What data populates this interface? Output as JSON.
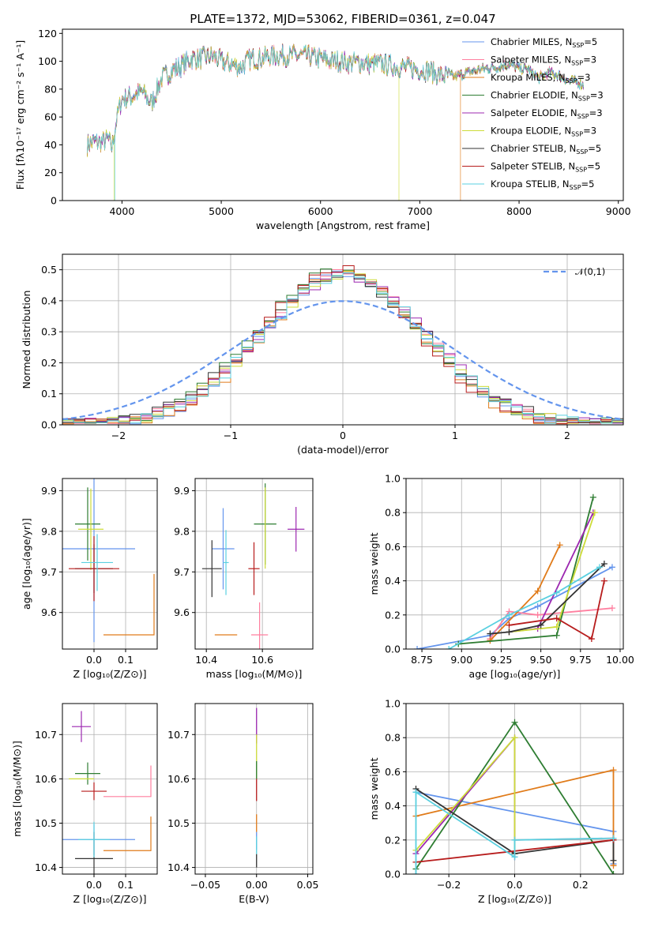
{
  "figure_title": "PLATE=1372, MJD=53062, FIBERID=0361, z=0.047",
  "colors": [
    "#6495ed",
    "#ff7f9f",
    "#e07b1a",
    "#2e7d32",
    "#9c27b0",
    "#cddc39",
    "#333333",
    "#b71c1c",
    "#5ad0e0"
  ],
  "chart_data": [
    {
      "id": "spectrum",
      "type": "line",
      "xlabel": "wavelength [Angstrom, rest frame]",
      "ylabel": "Flux [fλ10⁻¹⁷ erg cm⁻² s⁻¹ A⁻¹]",
      "xlim": [
        3400,
        9050
      ],
      "ylim": [
        0,
        123
      ],
      "xticks": [
        4000,
        5000,
        6000,
        7000,
        8000,
        9000
      ],
      "yticks": [
        0,
        20,
        40,
        60,
        80,
        100,
        120
      ],
      "legend_position": "top-right",
      "legend": [
        {
          "label": "Chabrier MILES, N",
          "sub": "SSP",
          "suffix": "=5"
        },
        {
          "label": "Salpeter MILES, N",
          "sub": "SSP",
          "suffix": "=3"
        },
        {
          "label": "Kroupa MILES, N",
          "sub": "SSP",
          "suffix": "=3"
        },
        {
          "label": "Chabrier ELODIE, N",
          "sub": "SSP",
          "suffix": "=3"
        },
        {
          "label": "Salpeter ELODIE, N",
          "sub": "SSP",
          "suffix": "=3"
        },
        {
          "label": "Kroupa ELODIE, N",
          "sub": "SSP",
          "suffix": "=3"
        },
        {
          "label": "Chabrier STELIB, N",
          "sub": "SSP",
          "suffix": "=5"
        },
        {
          "label": "Salpeter STELIB, N",
          "sub": "SSP",
          "suffix": "=5"
        },
        {
          "label": "Kroupa STELIB, N",
          "sub": "SSP",
          "suffix": "=5"
        }
      ],
      "envelope": [
        [
          3650,
          40
        ],
        [
          3700,
          42
        ],
        [
          3800,
          42
        ],
        [
          3860,
          44
        ],
        [
          3900,
          38
        ],
        [
          3950,
          60
        ],
        [
          4000,
          73
        ],
        [
          4100,
          75
        ],
        [
          4200,
          78
        ],
        [
          4300,
          70
        ],
        [
          4400,
          88
        ],
        [
          4500,
          93
        ],
        [
          4600,
          97
        ],
        [
          4700,
          102
        ],
        [
          4800,
          102
        ],
        [
          4900,
          104
        ],
        [
          5000,
          100
        ],
        [
          5100,
          98
        ],
        [
          5200,
          96
        ],
        [
          5300,
          102
        ],
        [
          5400,
          102
        ],
        [
          5500,
          104
        ],
        [
          5600,
          104
        ],
        [
          5700,
          104
        ],
        [
          5800,
          104
        ],
        [
          5900,
          103
        ],
        [
          6000,
          102
        ],
        [
          6100,
          100
        ],
        [
          6200,
          100
        ],
        [
          6300,
          99
        ],
        [
          6400,
          99
        ],
        [
          6500,
          98
        ],
        [
          6600,
          98
        ],
        [
          6700,
          97
        ],
        [
          6800,
          96
        ],
        [
          6900,
          95
        ],
        [
          7000,
          94
        ],
        [
          7100,
          93
        ],
        [
          7200,
          90
        ],
        [
          7300,
          89
        ],
        [
          7400,
          90
        ],
        [
          7500,
          92
        ],
        [
          7600,
          94
        ],
        [
          7700,
          95
        ],
        [
          7800,
          96
        ],
        [
          7900,
          98
        ],
        [
          8000,
          95
        ],
        [
          8100,
          94
        ],
        [
          8200,
          88
        ],
        [
          8300,
          92
        ],
        [
          8400,
          90
        ],
        [
          8500,
          86
        ],
        [
          8600,
          85
        ],
        [
          8650,
          82
        ]
      ],
      "dropouts": [
        {
          "series": 5,
          "x": 3920
        },
        {
          "series": 8,
          "x": 3930
        },
        {
          "series": 5,
          "x": 6790
        },
        {
          "series": 2,
          "x": 7410
        }
      ]
    },
    {
      "id": "residuals",
      "type": "step",
      "xlabel": "(data-model)/error",
      "ylabel": "Normed distribution",
      "xlim": [
        -2.5,
        2.5
      ],
      "ylim": [
        0,
        0.55
      ],
      "xticks": [
        -2,
        -1,
        0,
        1,
        2
      ],
      "yticks": [
        0.0,
        0.1,
        0.2,
        0.3,
        0.4,
        0.5
      ],
      "legend_label": "𝒩(0,1)",
      "bin_width": 0.1
    },
    {
      "id": "age_vs_Z",
      "type": "errorbar",
      "xlabel": "Z [log₁₀(Z/Z⊙)]",
      "ylabel": "age  [log₁₀(age/yr)]",
      "xlim": [
        -0.1,
        0.2
      ],
      "ylim": [
        9.51,
        9.93
      ],
      "xticks": [
        0.0,
        0.1
      ],
      "yticks": [
        9.6,
        9.7,
        9.8,
        9.9
      ],
      "points": [
        {
          "x": 0.0,
          "y": 9.757,
          "xerr": 0.13,
          "yerr": 0.23
        },
        {
          "x": 0.0,
          "y": 9.59,
          "xerr": 0.0,
          "yerr": 0.0
        },
        {
          "x": 0.0,
          "y": 9.545,
          "xerr": 0.0,
          "yerr": 0.0
        },
        {
          "x": -0.02,
          "y": 9.818,
          "xerr": 0.04,
          "yerr": 0.09
        },
        {
          "x": -0.02,
          "y": 9.8,
          "xerr": 0.0,
          "yerr": 0.0
        },
        {
          "x": -0.01,
          "y": 9.805,
          "xerr": 0.04,
          "yerr": 0.1
        },
        {
          "x": 0.0,
          "y": 9.708,
          "xerr": 0.06,
          "yerr": 0.06
        },
        {
          "x": 0.0,
          "y": 9.708,
          "xerr": 0.08,
          "yerr": 0.08
        },
        {
          "x": 0.01,
          "y": 9.723,
          "xerr": 0.05,
          "yerr": 0.07
        }
      ],
      "box": [
        0.03,
        0.19,
        9.545,
        9.695
      ]
    },
    {
      "id": "age_vs_mass",
      "type": "errorbar",
      "xlabel": "mass [log₁₀(M/M⊙)]",
      "xlim": [
        10.36,
        10.78
      ],
      "ylim": [
        9.51,
        9.93
      ],
      "xticks": [
        10.4,
        10.6
      ],
      "yticks": [
        9.6,
        9.7,
        9.8,
        9.9
      ],
      "points": [
        {
          "x": 10.46,
          "y": 9.757,
          "xerr": 0.04,
          "yerr": 0.1
        },
        {
          "x": 10.59,
          "y": 9.545,
          "xerr": 0.03,
          "yerr": 0.08
        },
        {
          "x": 10.47,
          "y": 9.545,
          "xerr": 0.04,
          "yerr": 0.0
        },
        {
          "x": 10.61,
          "y": 9.818,
          "xerr": 0.04,
          "yerr": 0.1
        },
        {
          "x": 10.72,
          "y": 9.805,
          "xerr": 0.03,
          "yerr": 0.055
        },
        {
          "x": 10.61,
          "y": 9.808,
          "xerr": 0.0,
          "yerr": 0.1
        },
        {
          "x": 10.42,
          "y": 9.708,
          "xerr": 0.035,
          "yerr": 0.07
        },
        {
          "x": 10.57,
          "y": 9.708,
          "xerr": 0.02,
          "yerr": 0.065
        },
        {
          "x": 10.47,
          "y": 9.723,
          "xerr": 0.01,
          "yerr": 0.08
        }
      ]
    },
    {
      "id": "weight_vs_age",
      "type": "line",
      "xlabel": "age  [log₁₀(age/yr)]",
      "ylabel": "mass weight",
      "xlim": [
        8.65,
        10.02
      ],
      "ylim": [
        0,
        1
      ],
      "xticks": [
        8.75,
        9.0,
        9.25,
        9.5,
        9.75,
        10.0
      ],
      "yticks": [
        0.0,
        0.2,
        0.4,
        0.6,
        0.8,
        1.0
      ],
      "series": [
        {
          "x": [
            8.72,
            9.18,
            9.3,
            9.48,
            9.95
          ],
          "y": [
            0.0,
            0.08,
            0.18,
            0.25,
            0.48
          ]
        },
        {
          "x": [
            9.18,
            9.3,
            9.48,
            9.95
          ],
          "y": [
            0.06,
            0.22,
            0.2,
            0.24
          ]
        },
        {
          "x": [
            9.18,
            9.48,
            9.62
          ],
          "y": [
            0.05,
            0.34,
            0.61
          ]
        },
        {
          "x": [
            8.98,
            9.6,
            9.83
          ],
          "y": [
            0.03,
            0.08,
            0.89
          ]
        },
        {
          "x": [
            9.3,
            9.48,
            9.83
          ],
          "y": [
            0.1,
            0.12,
            0.8
          ]
        },
        {
          "x": [
            9.3,
            9.6,
            9.84
          ],
          "y": [
            0.1,
            0.13,
            0.8
          ]
        },
        {
          "x": [
            9.18,
            9.3,
            9.5,
            9.9
          ],
          "y": [
            0.09,
            0.1,
            0.14,
            0.5
          ]
        },
        {
          "x": [
            9.3,
            9.6,
            9.82,
            9.9
          ],
          "y": [
            0.14,
            0.18,
            0.06,
            0.4
          ]
        },
        {
          "x": [
            8.92,
            9.3,
            9.6,
            9.87
          ],
          "y": [
            0.0,
            0.2,
            0.33,
            0.48
          ]
        }
      ]
    },
    {
      "id": "mass_vs_Z",
      "type": "errorbar",
      "xlabel": "Z [log₁₀(Z/Z⊙)]",
      "ylabel": "mass [log₁₀(M/M⊙)]",
      "xlim": [
        -0.1,
        0.2
      ],
      "ylim": [
        10.385,
        10.77
      ],
      "xticks": [
        0.0,
        0.1
      ],
      "yticks": [
        10.4,
        10.5,
        10.6,
        10.7
      ],
      "points": [
        {
          "x": 0.0,
          "y": 10.463,
          "xerr": 0.13,
          "yerr": 0.035
        },
        {
          "x": 0.03,
          "y": 10.56,
          "xerr": 0.0,
          "yerr": 0.0
        },
        {
          "x": 0.03,
          "y": 10.438,
          "xerr": 0.0,
          "yerr": 0.0
        },
        {
          "x": -0.02,
          "y": 10.612,
          "xerr": 0.04,
          "yerr": 0.025
        },
        {
          "x": -0.04,
          "y": 10.718,
          "xerr": 0.03,
          "yerr": 0.035
        },
        {
          "x": -0.04,
          "y": 10.6,
          "xerr": 0.04,
          "yerr": 0.0
        },
        {
          "x": 0.0,
          "y": 10.42,
          "xerr": 0.06,
          "yerr": 0.06
        },
        {
          "x": 0.0,
          "y": 10.572,
          "xerr": 0.04,
          "yerr": 0.02
        },
        {
          "x": 0.0,
          "y": 10.463,
          "xerr": 0.05,
          "yerr": 0.04
        }
      ],
      "boxes": [
        [
          0.03,
          0.18,
          10.56,
          10.63
        ],
        [
          0.03,
          0.18,
          10.438,
          10.515
        ]
      ]
    },
    {
      "id": "mass_vs_ebv",
      "type": "errorbar",
      "xlabel": "E(B-V)",
      "xlim": [
        -0.06,
        0.055
      ],
      "ylim": [
        10.385,
        10.77
      ],
      "xticks": [
        -0.05,
        0.0,
        0.05
      ],
      "yticks": [
        10.4,
        10.5,
        10.6,
        10.7
      ],
      "segments": [
        {
          "s": 4,
          "y0": 10.68,
          "y1": 10.76
        },
        {
          "s": 5,
          "y0": 10.6,
          "y1": 10.7
        },
        {
          "s": 3,
          "y0": 10.6,
          "y1": 10.64
        },
        {
          "s": 7,
          "y0": 10.55,
          "y1": 10.6
        },
        {
          "s": 2,
          "y0": 10.48,
          "y1": 10.52
        },
        {
          "s": 0,
          "y0": 10.44,
          "y1": 10.48
        },
        {
          "s": 8,
          "y0": 10.43,
          "y1": 10.47
        },
        {
          "s": 6,
          "y0": 10.4,
          "y1": 10.43
        }
      ]
    },
    {
      "id": "weight_vs_Z",
      "type": "line",
      "xlabel": "Z [log₁₀(Z/Z⊙)]",
      "ylabel": "mass weight",
      "xlim": [
        -0.33,
        0.33
      ],
      "ylim": [
        0,
        1
      ],
      "xticks": [
        -0.2,
        0.0,
        0.2
      ],
      "yticks": [
        0.0,
        0.2,
        0.4,
        0.6,
        0.8,
        1.0
      ],
      "series": [
        {
          "x": [
            -0.3,
            0.3,
            0.3
          ],
          "y": [
            0.48,
            0.25,
            0.06
          ]
        },
        {
          "x": [
            0.0,
            0.3
          ],
          "y": [
            0.2,
            0.21
          ]
        },
        {
          "x": [
            -0.3,
            0.3,
            0.3
          ],
          "y": [
            0.34,
            0.61,
            0.05
          ]
        },
        {
          "x": [
            -0.3,
            0.0,
            0.3
          ],
          "y": [
            0.03,
            0.89,
            0.0
          ]
        },
        {
          "x": [
            -0.3,
            0.0,
            0.0
          ],
          "y": [
            0.12,
            0.8,
            0.1
          ]
        },
        {
          "x": [
            -0.3,
            0.0,
            0.0
          ],
          "y": [
            0.14,
            0.8,
            0.12
          ]
        },
        {
          "x": [
            -0.3,
            0.0,
            0.3,
            0.3
          ],
          "y": [
            0.5,
            0.12,
            0.2,
            0.08
          ]
        },
        {
          "x": [
            -0.3,
            0.3
          ],
          "y": [
            0.07,
            0.2
          ]
        },
        {
          "x": [
            -0.3,
            -0.3,
            0.0,
            0.0,
            0.3
          ],
          "y": [
            0.0,
            0.48,
            0.1,
            0.2,
            0.21
          ]
        }
      ]
    }
  ]
}
